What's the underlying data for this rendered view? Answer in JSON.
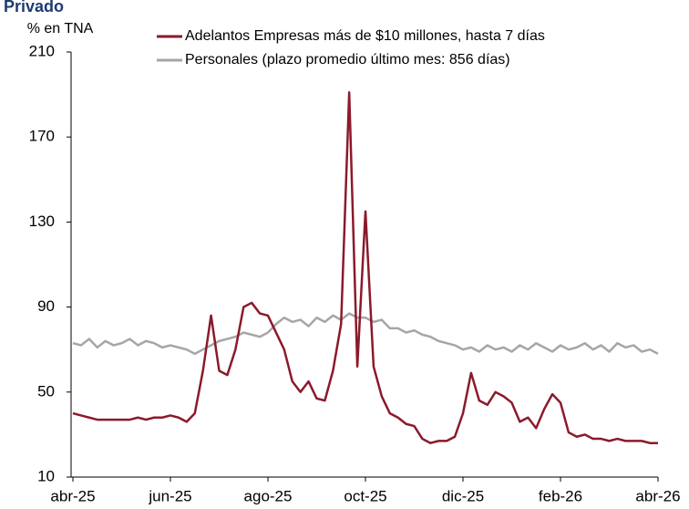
{
  "chart_data": {
    "type": "line",
    "title": "Privado",
    "y_label": "% en TNA",
    "categories": [
      "abr-25",
      null,
      null,
      null,
      null,
      null,
      null,
      null,
      null,
      null,
      null,
      null,
      "jun-25",
      null,
      null,
      null,
      null,
      null,
      null,
      null,
      null,
      null,
      null,
      null,
      "ago-25",
      null,
      null,
      null,
      null,
      null,
      null,
      null,
      null,
      null,
      null,
      null,
      "oct-25",
      null,
      null,
      null,
      null,
      null,
      null,
      null,
      null,
      null,
      null,
      null,
      "dic-25",
      null,
      null,
      null,
      null,
      null,
      null,
      null,
      null,
      null,
      null,
      null,
      "feb-26",
      null,
      null,
      null,
      null,
      null,
      null,
      null,
      null,
      null,
      null,
      null,
      "abr-26"
    ],
    "series": [
      {
        "name": "Adelantos Empresas más de $10 millones, hasta 7 días",
        "color": "#8b1a2b",
        "values": [
          40,
          39,
          38,
          37,
          37,
          37,
          37,
          37,
          38,
          37,
          38,
          38,
          39,
          38,
          36,
          40,
          60,
          86,
          60,
          58,
          70,
          90,
          92,
          87,
          86,
          78,
          70,
          55,
          50,
          55,
          47,
          46,
          60,
          82,
          191,
          62,
          135,
          62,
          48,
          40,
          38,
          35,
          34,
          28,
          26,
          27,
          27,
          29,
          40,
          59,
          46,
          44,
          50,
          48,
          45,
          36,
          38,
          33,
          42,
          49,
          45,
          31,
          29,
          30,
          28,
          28,
          27,
          28,
          27,
          27,
          27,
          26,
          26
        ]
      },
      {
        "name": "Personales (plazo promedio último mes: 856 días)",
        "color": "#a6a6a6",
        "values": [
          73,
          72,
          75,
          71,
          74,
          72,
          73,
          75,
          72,
          74,
          73,
          71,
          72,
          71,
          70,
          68,
          70,
          72,
          74,
          75,
          76,
          78,
          77,
          76,
          78,
          82,
          85,
          83,
          84,
          81,
          85,
          83,
          86,
          84,
          87,
          85,
          85,
          83,
          84,
          80,
          80,
          78,
          79,
          77,
          76,
          74,
          73,
          72,
          70,
          71,
          69,
          72,
          70,
          71,
          69,
          72,
          70,
          73,
          71,
          69,
          72,
          70,
          71,
          73,
          70,
          72,
          69,
          73,
          71,
          72,
          69,
          70,
          68
        ]
      }
    ],
    "ylim": [
      10,
      210
    ],
    "yticks": [
      10,
      50,
      90,
      130,
      170,
      210
    ]
  }
}
